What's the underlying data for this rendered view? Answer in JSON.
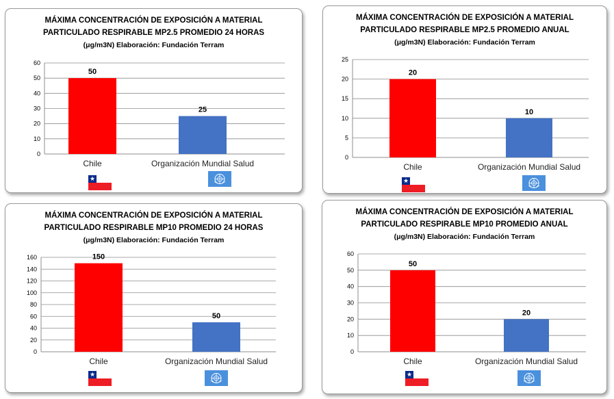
{
  "charts": [
    {
      "title1": "MÁXIMA  CONCENTRACIÓN DE EXPOSICIÓN A  MATERIAL",
      "title2": "PARTICULADO  RESPIRABLE MP2.5 PROMEDIO 24 HORAS",
      "title3": "(μg/m3N)  Elaboración: Fundación Terram"
    },
    {
      "title1": "MÁXIMA CONCENTRACIÓN DE EXPOSICIÓN  A MATERIAL",
      "title2": "PARTICULADO RESPIRABLE MP2.5   PROMEDIO ANUAL",
      "title3": "(μg/m3N)  Elaboración: Fundación Terram"
    },
    {
      "title1": "MÁXIMA  CONCENTRACIÓN DE EXPOSICIÓN A  MATERIAL",
      "title2": "PARTICULADO  RESPIRABLE MP10 PROMEDIO 24 HORAS",
      "title3": "(μg/m3N)   Elaboración: Fundación Terram"
    },
    {
      "title1": "MÁXIMA CONCENTRACIÓN DE EXPOSICIÓN A MATERIAL",
      "title2": "PARTICULADO  RESPIRABLE  MP10 PROMEDIO ANUAL",
      "title3": "(μg/m3N)  Elaboración: Fundación Terram"
    }
  ],
  "flags": [
    {
      "icon": "chile-flag-icon",
      "colors": {
        "blue": "#0b2a8a",
        "white": "#ffffff",
        "red": "#ee1c25"
      }
    },
    {
      "icon": "who-flag-icon",
      "colors": {
        "background": "#4a90dd",
        "emblem": "#ffffff"
      }
    }
  ],
  "chart_data": [
    {
      "type": "bar",
      "categories": [
        "Chile",
        "Organización Mundial Salud"
      ],
      "values": [
        50,
        25
      ],
      "colors": [
        "#ff0000",
        "#4472c4"
      ],
      "ylim": [
        0,
        60
      ],
      "yticks": [
        "0",
        "10",
        "20",
        "30",
        "40",
        "50",
        "60"
      ],
      "data_labels": [
        "50",
        "25"
      ],
      "grid": true
    },
    {
      "type": "bar",
      "categories": [
        "Chile",
        "Organización Mundial Salud"
      ],
      "values": [
        20,
        10
      ],
      "colors": [
        "#ff0000",
        "#4472c4"
      ],
      "ylim": [
        0,
        25
      ],
      "yticks": [
        "0",
        "5",
        "10",
        "15",
        "20",
        "25"
      ],
      "data_labels": [
        "20",
        "10"
      ],
      "grid": true
    },
    {
      "type": "bar",
      "categories": [
        "Chile",
        "Organización Mundial Salud"
      ],
      "values": [
        150,
        50
      ],
      "colors": [
        "#ff0000",
        "#4472c4"
      ],
      "ylim": [
        0,
        160
      ],
      "yticks": [
        "0",
        "20",
        "40",
        "60",
        "80",
        "100",
        "120",
        "140",
        "160"
      ],
      "data_labels": [
        "150",
        "50"
      ],
      "grid": true
    },
    {
      "type": "bar",
      "categories": [
        "Chile",
        "Organización Mundial Salud"
      ],
      "values": [
        50,
        20
      ],
      "colors": [
        "#ff0000",
        "#4472c4"
      ],
      "ylim": [
        0,
        60
      ],
      "yticks": [
        "0",
        "10",
        "20",
        "30",
        "40",
        "50",
        "60"
      ],
      "data_labels": [
        "50",
        "20"
      ],
      "grid": true
    }
  ]
}
